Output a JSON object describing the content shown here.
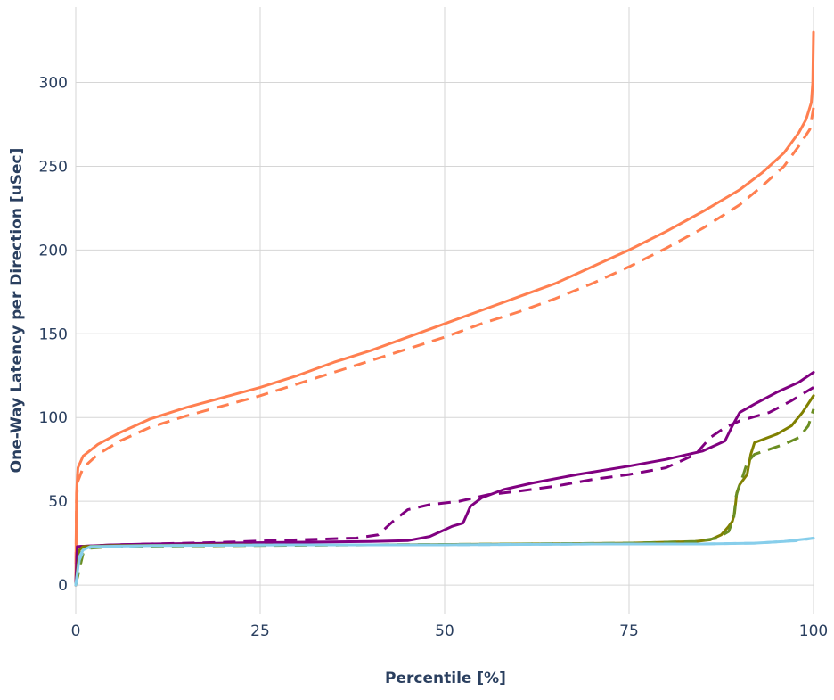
{
  "chart_data": {
    "type": "line",
    "title": "",
    "xlabel": "Percentile [%]",
    "ylabel": "One-Way Latency per Direction [uSec]",
    "xlim": [
      0,
      100
    ],
    "ylim": [
      -17,
      345
    ],
    "xticks": [
      0,
      25,
      50,
      75,
      100
    ],
    "yticks": [
      0,
      50,
      100,
      150,
      200,
      250,
      300
    ],
    "grid": true,
    "legend": "none",
    "series": [
      {
        "color": "#ff7f50",
        "dash": "solid",
        "points": [
          [
            0,
            0
          ],
          [
            0.1,
            55
          ],
          [
            0.3,
            70
          ],
          [
            1,
            77
          ],
          [
            3,
            84
          ],
          [
            6,
            91
          ],
          [
            10,
            99
          ],
          [
            15,
            106
          ],
          [
            20,
            112
          ],
          [
            25,
            118
          ],
          [
            30,
            125
          ],
          [
            35,
            133
          ],
          [
            40,
            140
          ],
          [
            45,
            148
          ],
          [
            50,
            156
          ],
          [
            55,
            164
          ],
          [
            60,
            172
          ],
          [
            65,
            180
          ],
          [
            70,
            190
          ],
          [
            75,
            200
          ],
          [
            80,
            211
          ],
          [
            85,
            223
          ],
          [
            90,
            236
          ],
          [
            93,
            246
          ],
          [
            96,
            258
          ],
          [
            98,
            270
          ],
          [
            99,
            278
          ],
          [
            99.7,
            288
          ],
          [
            99.9,
            300
          ],
          [
            100,
            330
          ]
        ]
      },
      {
        "color": "#ff7f50",
        "dash": "dashed",
        "points": [
          [
            0,
            0
          ],
          [
            0.1,
            50
          ],
          [
            0.3,
            62
          ],
          [
            1,
            70
          ],
          [
            3,
            78
          ],
          [
            6,
            86
          ],
          [
            10,
            94
          ],
          [
            15,
            101
          ],
          [
            20,
            107
          ],
          [
            25,
            113
          ],
          [
            30,
            120
          ],
          [
            35,
            127
          ],
          [
            40,
            134
          ],
          [
            45,
            141
          ],
          [
            50,
            148
          ],
          [
            55,
            156
          ],
          [
            60,
            163
          ],
          [
            65,
            171
          ],
          [
            70,
            180
          ],
          [
            75,
            190
          ],
          [
            80,
            201
          ],
          [
            85,
            213
          ],
          [
            90,
            227
          ],
          [
            93,
            238
          ],
          [
            96,
            250
          ],
          [
            98,
            262
          ],
          [
            99.5,
            272
          ],
          [
            100,
            285
          ]
        ]
      },
      {
        "color": "#800080",
        "dash": "solid",
        "points": [
          [
            0,
            0
          ],
          [
            0.2,
            23
          ],
          [
            5,
            24
          ],
          [
            10,
            24.5
          ],
          [
            20,
            25
          ],
          [
            30,
            25.5
          ],
          [
            40,
            26
          ],
          [
            45,
            26.5
          ],
          [
            48,
            29
          ],
          [
            50,
            33
          ],
          [
            51,
            35
          ],
          [
            52.5,
            37
          ],
          [
            53.5,
            47
          ],
          [
            55,
            52
          ],
          [
            58,
            57
          ],
          [
            62,
            61
          ],
          [
            68,
            66
          ],
          [
            75,
            71
          ],
          [
            80,
            75
          ],
          [
            85,
            80
          ],
          [
            88,
            86
          ],
          [
            89,
            95
          ],
          [
            90,
            103
          ],
          [
            92,
            108
          ],
          [
            95,
            115
          ],
          [
            98,
            121
          ],
          [
            100,
            127
          ]
        ]
      },
      {
        "color": "#800080",
        "dash": "dashed",
        "points": [
          [
            0,
            0
          ],
          [
            0.2,
            23
          ],
          [
            5,
            24
          ],
          [
            10,
            24.5
          ],
          [
            20,
            25.5
          ],
          [
            30,
            27
          ],
          [
            38,
            28
          ],
          [
            41,
            30
          ],
          [
            43,
            38
          ],
          [
            45,
            45
          ],
          [
            48,
            48
          ],
          [
            52,
            50
          ],
          [
            56,
            54
          ],
          [
            60,
            56
          ],
          [
            65,
            59
          ],
          [
            70,
            63
          ],
          [
            75,
            66
          ],
          [
            80,
            70
          ],
          [
            84,
            78
          ],
          [
            86,
            88
          ],
          [
            88,
            94
          ],
          [
            90,
            98
          ],
          [
            94,
            103
          ],
          [
            97,
            110
          ],
          [
            100,
            118
          ]
        ]
      },
      {
        "color": "#808000",
        "dash": "solid",
        "points": [
          [
            0,
            0
          ],
          [
            0.5,
            21
          ],
          [
            1,
            23
          ],
          [
            5,
            23.5
          ],
          [
            20,
            24
          ],
          [
            40,
            24
          ],
          [
            60,
            24.5
          ],
          [
            75,
            25
          ],
          [
            84,
            26
          ],
          [
            86,
            27
          ],
          [
            87.5,
            30
          ],
          [
            88.5,
            35
          ],
          [
            89,
            38
          ],
          [
            89.3,
            43
          ],
          [
            89.6,
            55
          ],
          [
            90,
            60
          ],
          [
            91,
            66
          ],
          [
            91.5,
            78
          ],
          [
            92,
            85
          ],
          [
            95,
            90
          ],
          [
            97,
            95
          ],
          [
            98.5,
            103
          ],
          [
            100,
            113
          ]
        ]
      },
      {
        "color": "#6b8e23",
        "dash": "dashed",
        "points": [
          [
            0,
            0
          ],
          [
            1,
            19
          ],
          [
            2,
            22
          ],
          [
            5,
            23
          ],
          [
            20,
            23.5
          ],
          [
            40,
            24
          ],
          [
            60,
            24.5
          ],
          [
            75,
            25
          ],
          [
            84,
            26
          ],
          [
            87,
            28
          ],
          [
            88.5,
            32
          ],
          [
            89.2,
            40
          ],
          [
            89.5,
            53
          ],
          [
            90,
            60
          ],
          [
            90.5,
            66
          ],
          [
            91,
            73
          ],
          [
            92,
            78
          ],
          [
            94,
            81
          ],
          [
            96,
            84
          ],
          [
            98,
            88
          ],
          [
            99.3,
            95
          ],
          [
            100,
            105
          ]
        ]
      },
      {
        "color": "#87ceeb",
        "dash": "solid",
        "points": [
          [
            0,
            0
          ],
          [
            0.5,
            17
          ],
          [
            1,
            21
          ],
          [
            2,
            23
          ],
          [
            10,
            23.5
          ],
          [
            30,
            24
          ],
          [
            50,
            24
          ],
          [
            70,
            24.5
          ],
          [
            85,
            24.5
          ],
          [
            92,
            25
          ],
          [
            96,
            26
          ],
          [
            98,
            27
          ],
          [
            100,
            28
          ]
        ]
      },
      {
        "color": "#87ceeb",
        "dash": "dashed",
        "points": [
          [
            0,
            0
          ],
          [
            0.5,
            15
          ],
          [
            1,
            20
          ],
          [
            2,
            22.5
          ],
          [
            10,
            23.5
          ],
          [
            30,
            24
          ],
          [
            50,
            24
          ],
          [
            70,
            24.5
          ],
          [
            85,
            24.5
          ],
          [
            92,
            25
          ],
          [
            96,
            26
          ],
          [
            98,
            26.5
          ],
          [
            100,
            28
          ]
        ]
      }
    ]
  }
}
